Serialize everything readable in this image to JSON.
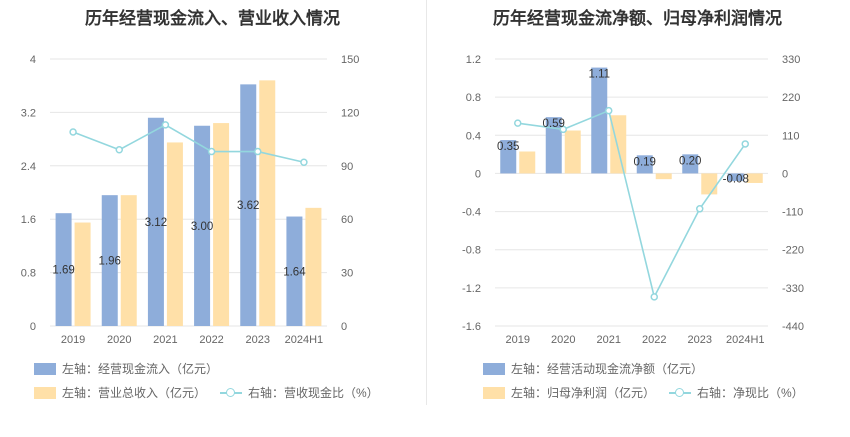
{
  "colors": {
    "bar_primary": "#8eadda",
    "bar_secondary": "#ffe0a8",
    "line": "#93d7de",
    "grid": "#e6e6e6",
    "axis_text": "#666666"
  },
  "chart_data": [
    {
      "type": "bar",
      "title": "历年经营现金流入、营业收入情况",
      "categories": [
        "2019",
        "2020",
        "2021",
        "2022",
        "2023",
        "2024H1"
      ],
      "left_axis": {
        "ticks": [
          "0",
          "0.8",
          "1.6",
          "2.4",
          "3.2",
          "4"
        ],
        "ylim": [
          0,
          4
        ]
      },
      "right_axis": {
        "ticks": [
          "0",
          "30",
          "60",
          "90",
          "120",
          "150"
        ],
        "ylim": [
          0,
          150
        ]
      },
      "series": [
        {
          "name": "左轴：经营现金流入（亿元）",
          "axis": "left",
          "kind": "bar",
          "values": [
            1.69,
            1.96,
            3.12,
            3.0,
            3.62,
            1.64
          ],
          "labels": [
            "1.69",
            "1.96",
            "3.12",
            "3.00",
            "3.62",
            "1.64"
          ]
        },
        {
          "name": "左轴：营业总收入（亿元）",
          "axis": "left",
          "kind": "bar",
          "values": [
            1.55,
            1.96,
            2.75,
            3.04,
            3.68,
            1.77
          ]
        },
        {
          "name": "右轴：营收现金比（%）",
          "axis": "right",
          "kind": "line",
          "values": [
            109,
            99,
            113,
            98,
            98,
            92
          ]
        }
      ]
    },
    {
      "type": "bar",
      "title": "历年经营现金流净额、归母净利润情况",
      "categories": [
        "2019",
        "2020",
        "2021",
        "2022",
        "2023",
        "2024H1"
      ],
      "left_axis": {
        "ticks": [
          "-1.6",
          "-1.2",
          "-0.8",
          "-0.4",
          "0",
          "0.4",
          "0.8",
          "1.2"
        ],
        "ylim": [
          -1.6,
          1.2
        ]
      },
      "right_axis": {
        "ticks": [
          "-440",
          "-330",
          "-220",
          "-110",
          "0",
          "110",
          "220",
          "330"
        ],
        "ylim": [
          -440,
          330
        ]
      },
      "series": [
        {
          "name": "左轴：经营活动现金流净额（亿元）",
          "axis": "left",
          "kind": "bar",
          "values": [
            0.35,
            0.59,
            1.11,
            0.19,
            0.2,
            -0.08
          ],
          "labels": [
            "0.35",
            "0.59",
            "1.11",
            "0.19",
            "0.20",
            "-0.08"
          ]
        },
        {
          "name": "左轴：归母净利润（亿元）",
          "axis": "left",
          "kind": "bar",
          "values": [
            0.23,
            0.45,
            0.61,
            -0.06,
            -0.22,
            -0.1
          ]
        },
        {
          "name": "右轴：净现比（%）",
          "axis": "right",
          "kind": "line",
          "values": [
            145,
            127,
            181,
            -356,
            -102,
            85
          ]
        }
      ]
    }
  ]
}
